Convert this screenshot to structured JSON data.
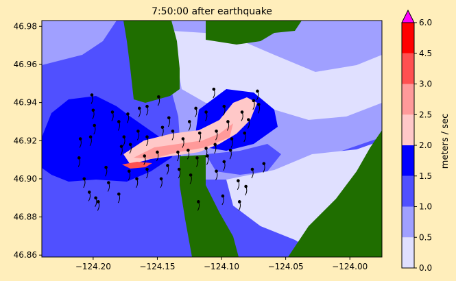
{
  "chart_data": {
    "type": "heatmap",
    "title": "7:50:00 after earthquake",
    "xlabel": "",
    "ylabel": "",
    "xlim": [
      -124.24,
      -123.975
    ],
    "ylim": [
      46.859,
      46.983
    ],
    "xticks": [
      -124.2,
      -124.15,
      -124.1,
      -124.05,
      -124.0
    ],
    "xtick_labels": [
      "−124.20",
      "−124.15",
      "−124.10",
      "−124.05",
      "−124.00"
    ],
    "yticks": [
      46.86,
      46.88,
      46.9,
      46.92,
      46.94,
      46.96,
      46.98
    ],
    "ytick_labels": [
      "46.86",
      "46.88",
      "46.90",
      "46.92",
      "46.94",
      "46.96",
      "46.98"
    ],
    "land_color": "#1f6e00",
    "colorbar": {
      "label": "meters / sec",
      "levels": [
        0.0,
        0.5,
        1.0,
        1.5,
        2.0,
        2.5,
        3.0,
        4.5,
        6.0
      ],
      "tick_labels": [
        "0.0",
        "0.5",
        "1.0",
        "1.5",
        "2.0",
        "2.5",
        "3.0",
        "4.5",
        "6.0"
      ],
      "colors": [
        "#e0e0ff",
        "#a0a0ff",
        "#5050ff",
        "#0000ff",
        "#ffc8c8",
        "#ff9a9a",
        "#ff5050",
        "#ff0000"
      ],
      "extend_color": "#ff00ff"
    },
    "particles": [
      [
        -124.201,
        46.944
      ],
      [
        -124.2,
        46.936
      ],
      [
        -124.199,
        46.928
      ],
      [
        -124.202,
        46.922
      ],
      [
        -124.21,
        46.921
      ],
      [
        -124.211,
        46.911
      ],
      [
        -124.207,
        46.9
      ],
      [
        -124.203,
        46.893
      ],
      [
        -124.198,
        46.89
      ],
      [
        -124.196,
        46.888
      ],
      [
        -124.19,
        46.906
      ],
      [
        -124.188,
        46.898
      ],
      [
        -124.18,
        46.892
      ],
      [
        -124.172,
        46.904
      ],
      [
        -124.166,
        46.9
      ],
      [
        -124.158,
        46.905
      ],
      [
        -124.147,
        46.9
      ],
      [
        -124.142,
        46.907
      ],
      [
        -124.133,
        46.905
      ],
      [
        -124.124,
        46.902
      ],
      [
        -124.119,
        46.911
      ],
      [
        -124.111,
        46.912
      ],
      [
        -124.104,
        46.904
      ],
      [
        -124.098,
        46.909
      ],
      [
        -124.093,
        46.915
      ],
      [
        -124.087,
        46.899
      ],
      [
        -124.081,
        46.896
      ],
      [
        -124.118,
        46.888
      ],
      [
        -124.099,
        46.891
      ],
      [
        -124.086,
        46.888
      ],
      [
        -124.092,
        46.921
      ],
      [
        -124.104,
        46.925
      ],
      [
        -124.117,
        46.924
      ],
      [
        -124.13,
        46.921
      ],
      [
        -124.138,
        46.925
      ],
      [
        -124.146,
        46.927
      ],
      [
        -124.158,
        46.922
      ],
      [
        -124.165,
        46.925
      ],
      [
        -124.171,
        46.918
      ],
      [
        -124.178,
        46.917
      ],
      [
        -124.18,
        46.93
      ],
      [
        -124.173,
        46.934
      ],
      [
        -124.164,
        46.937
      ],
      [
        -124.158,
        46.938
      ],
      [
        -124.149,
        46.943
      ],
      [
        -124.141,
        46.932
      ],
      [
        -124.125,
        46.93
      ],
      [
        -124.112,
        46.935
      ],
      [
        -124.106,
        46.947
      ],
      [
        -124.098,
        46.938
      ],
      [
        -124.084,
        46.935
      ],
      [
        -124.079,
        46.931
      ],
      [
        -124.072,
        46.946
      ],
      [
        -124.075,
        46.941
      ],
      [
        -124.071,
        46.939
      ],
      [
        -124.082,
        46.924
      ],
      [
        -124.067,
        46.908
      ],
      [
        -124.076,
        46.905
      ],
      [
        -124.16,
        46.912
      ],
      [
        -124.15,
        46.914
      ],
      [
        -124.134,
        46.914
      ],
      [
        -124.126,
        46.915
      ],
      [
        -124.112,
        46.916
      ],
      [
        -124.105,
        46.918
      ],
      [
        -124.185,
        46.935
      ],
      [
        -124.176,
        46.922
      ],
      [
        -124.12,
        46.937
      ],
      [
        -124.095,
        46.93
      ]
    ]
  }
}
